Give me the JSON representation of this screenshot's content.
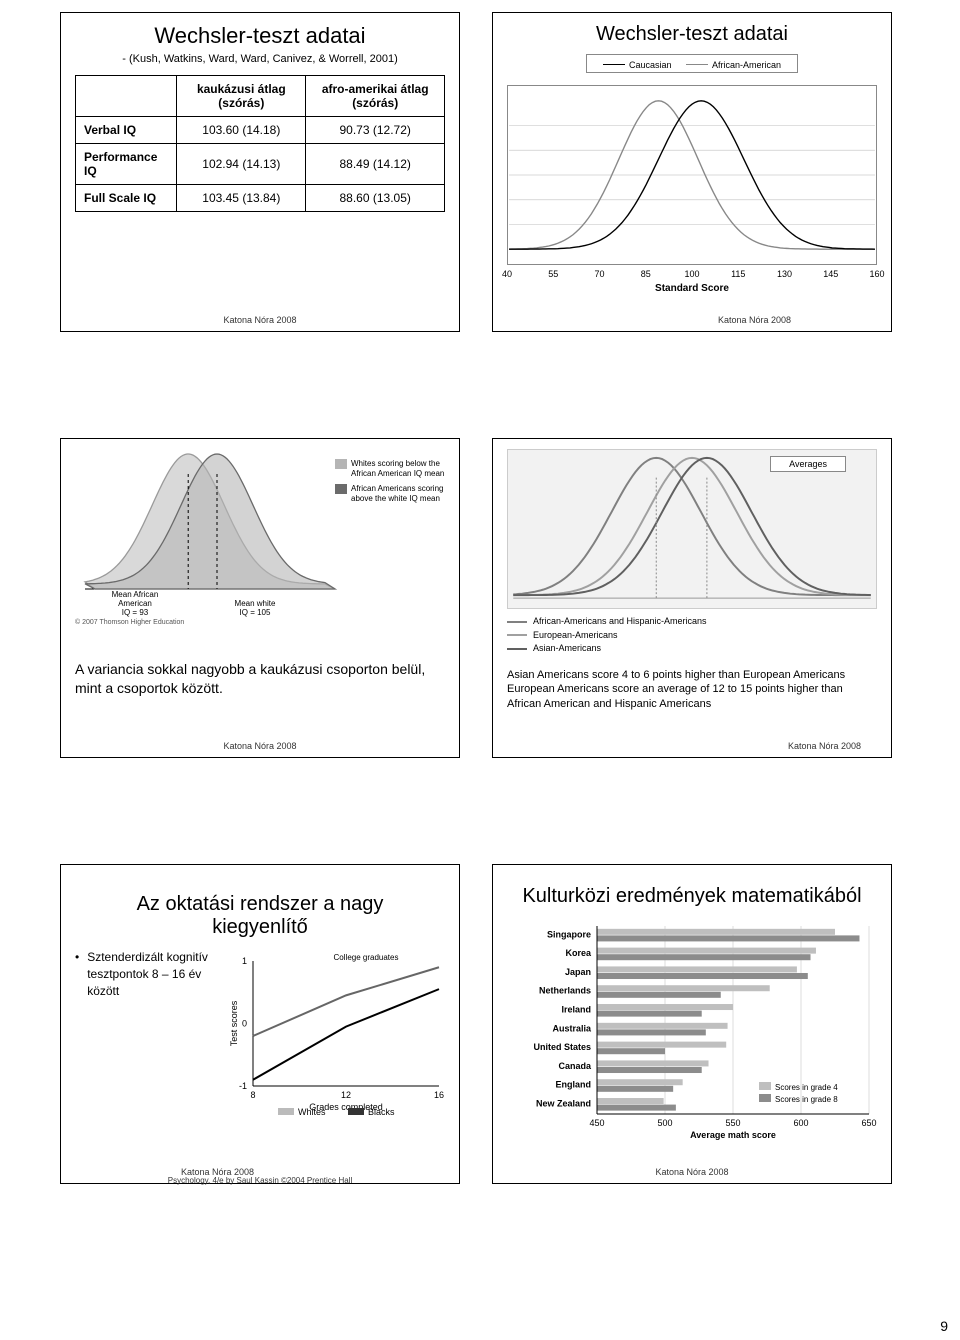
{
  "panel1": {
    "title": "Wechsler-teszt adatai",
    "subtitle": "- (Kush, Watkins, Ward, Ward, Canivez, & Worrell, 2001)",
    "columns": [
      "",
      "kaukázusi átlag (szórás)",
      "afro-amerikai átlag (szórás)"
    ],
    "rows": [
      [
        "Verbal IQ",
        "103.60 (14.18)",
        "90.73 (12.72)"
      ],
      [
        "Performance IQ",
        "102.94 (14.13)",
        "88.49 (14.12)"
      ],
      [
        "Full Scale IQ",
        "103.45 (13.84)",
        "88.60 (13.05)"
      ]
    ],
    "footer": "Katona Nóra  2008"
  },
  "panel2": {
    "title": "Wechsler-teszt adatai",
    "legend": [
      "Caucasian",
      "African-American"
    ],
    "x_axis": {
      "label": "Standard Score",
      "ticks": [
        40,
        55,
        70,
        85,
        100,
        115,
        130,
        145,
        160
      ]
    },
    "curves": {
      "caucasian": {
        "mean": 103,
        "sd": 14,
        "color": "#000000"
      },
      "african": {
        "mean": 89,
        "sd": 13,
        "color": "#888888"
      }
    },
    "chart_bg": "#ffffff",
    "grid_color": "#cccccc",
    "footer": "Katona Nóra  2008"
  },
  "panel3": {
    "curve_means": {
      "african_american_iq": 93,
      "white_iq": 105
    },
    "legend_lines": [
      "Whites scoring below the African American IQ mean",
      "African Americans scoring above the white IQ mean"
    ],
    "axis_labels": {
      "left": "Mean African American\nIQ = 93",
      "right": "Mean white\nIQ = 105"
    },
    "copyright": "© 2007 Thomson Higher Education",
    "caption": "A variancia sokkal nagyobb a kaukázusi csoporton belül, mint a csoportok között.",
    "footer": "Katona Nóra  2008"
  },
  "panel4": {
    "overlay_title": "Averages",
    "series_legend": [
      "African-Americans and Hispanic-Americans",
      "European-Americans",
      "Asian-Americans"
    ],
    "curve_colors": [
      "#808080",
      "#a0a0a0",
      "#606060"
    ],
    "caption_lines": [
      "Asian Americans score 4 to 6 points higher than European Americans",
      "European Americans score an average of 12 to 15 points higher than African American and Hispanic Americans"
    ],
    "footer": "Katona Nóra  2008"
  },
  "panel5": {
    "title": "Az oktatási rendszer a nagy kiegyenlítő",
    "bullet": "Sztenderdizált kognitív tesztpontok 8 – 16 év között",
    "chart": {
      "y_label": "Test scores",
      "x_label": "Grades completed",
      "x_ticks": [
        8,
        12,
        16
      ],
      "y_ticks": [
        -1,
        0,
        1
      ],
      "top_label": "College graduates",
      "legend": [
        "Whites",
        "Blacks"
      ],
      "series": {
        "whites": {
          "color": "#666666",
          "points": [
            [
              8,
              -0.2
            ],
            [
              12,
              0.45
            ],
            [
              16,
              0.9
            ]
          ]
        },
        "blacks": {
          "color": "#000000",
          "points": [
            [
              8,
              -0.9
            ],
            [
              12,
              -0.05
            ],
            [
              16,
              0.55
            ]
          ]
        }
      }
    },
    "footer": "Katona Nóra  2008",
    "credit": "Psychology, 4/e by Saul Kassin ©2004 Prentice Hall"
  },
  "panel6": {
    "title": "Kulturközi eredmények matematikából",
    "countries": [
      "Singapore",
      "Korea",
      "Japan",
      "Netherlands",
      "Ireland",
      "Australia",
      "United States",
      "Canada",
      "England",
      "New Zealand"
    ],
    "x_axis": {
      "label": "Average math score",
      "ticks": [
        450,
        500,
        550,
        600,
        650
      ]
    },
    "legend": [
      "Scores in grade 4",
      "Scores in grade 8"
    ],
    "bar_colors": {
      "grade4": "#bfbfbf",
      "grade8": "#8c8c8c"
    },
    "data": {
      "Singapore": [
        625,
        643
      ],
      "Korea": [
        611,
        607
      ],
      "Japan": [
        597,
        605
      ],
      "Netherlands": [
        577,
        541
      ],
      "Ireland": [
        550,
        527
      ],
      "Australia": [
        546,
        530
      ],
      "United States": [
        545,
        500
      ],
      "Canada": [
        532,
        527
      ],
      "England": [
        513,
        506
      ],
      "New Zealand": [
        499,
        508
      ]
    },
    "footer": "Katona Nóra  2008"
  },
  "page_number": "9"
}
